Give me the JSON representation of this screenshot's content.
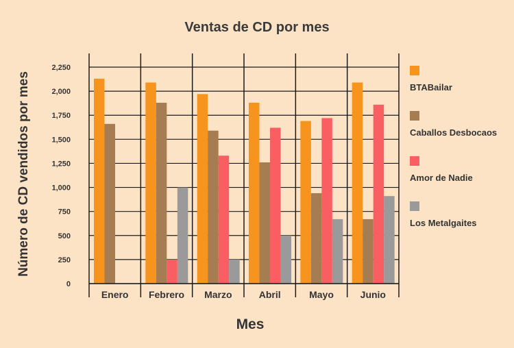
{
  "chart_data": {
    "type": "bar",
    "title": "Ventas de CD por mes",
    "xlabel": "Mes",
    "ylabel": "Número de CD vendidos por mes",
    "categories": [
      "Enero",
      "Febrero",
      "Marzo",
      "Abril",
      "Mayo",
      "Junio"
    ],
    "ylim": [
      0,
      2250
    ],
    "yticks": [
      0,
      250,
      500,
      750,
      1000,
      1250,
      1500,
      1750,
      2000,
      2250
    ],
    "ytick_labels": [
      "0",
      "250",
      "500",
      "750",
      "1,000",
      "1,250",
      "1,500",
      "1,750",
      "2,000",
      "2,250"
    ],
    "grid": true,
    "legend_position": "right",
    "series": [
      {
        "name": "BTABailar",
        "color": "#f7941d",
        "values": [
          2130,
          2090,
          1970,
          1880,
          1690,
          2090
        ]
      },
      {
        "name": "Caballos Desbocaos",
        "color": "#a67c52",
        "values": [
          1660,
          1880,
          1590,
          1260,
          940,
          670
        ]
      },
      {
        "name": "Amor de Nadie",
        "color": "#f95f62",
        "values": [
          0,
          250,
          1330,
          1620,
          1720,
          1860
        ]
      },
      {
        "name": "Los Metalgaites",
        "color": "#9a9a9a",
        "values": [
          0,
          1000,
          250,
          500,
          670,
          910
        ]
      }
    ]
  }
}
